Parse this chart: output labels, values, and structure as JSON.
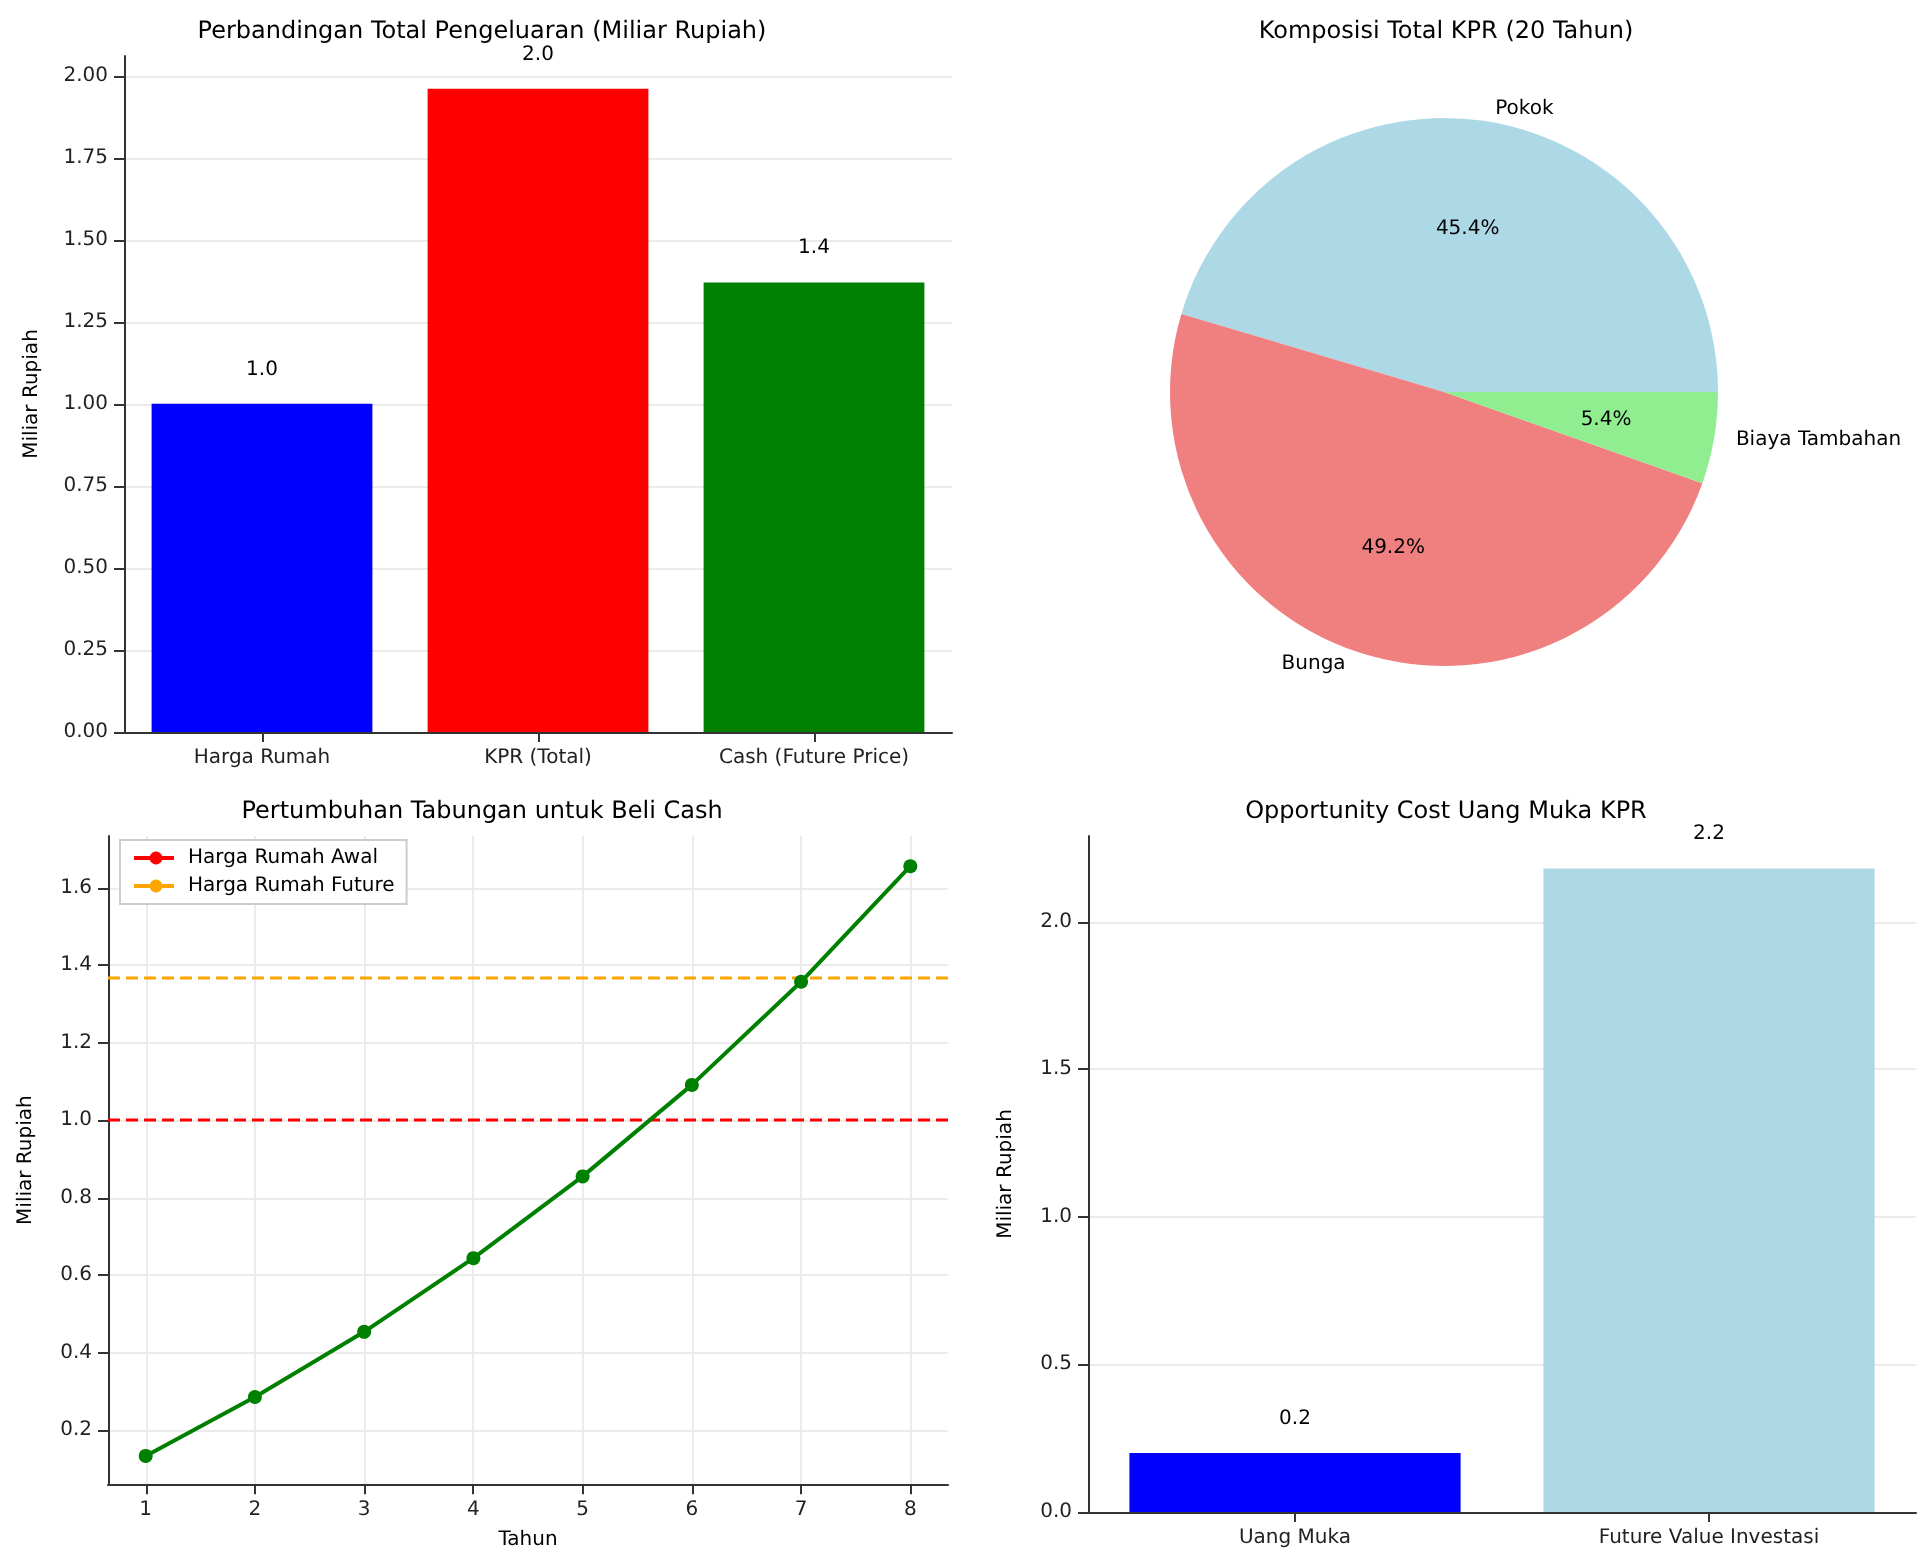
{
  "chart_data": [
    {
      "type": "bar",
      "title": "Perbandingan Total Pengeluaran (Miliar Rupiah)",
      "ylabel": "Miliar Rupiah",
      "categories": [
        "Harga Rumah",
        "KPR (Total)",
        "Cash (Future Price)"
      ],
      "values": [
        1.0,
        1.96,
        1.37
      ],
      "colors": [
        "#0000ff",
        "#ff0000",
        "#008000"
      ],
      "value_labels": [
        "1.0",
        "2.0",
        "1.4"
      ],
      "ylim": [
        0,
        2.06
      ],
      "yticks": [
        {
          "value": 0,
          "label": "0.00"
        },
        {
          "value": 0.25,
          "label": "0.25"
        },
        {
          "value": 0.5,
          "label": "0.50"
        },
        {
          "value": 0.75,
          "label": "0.75"
        },
        {
          "value": 1,
          "label": "1.00"
        },
        {
          "value": 1.25,
          "label": "1.25"
        },
        {
          "value": 1.5,
          "label": "1.50"
        },
        {
          "value": 1.75,
          "label": "1.75"
        },
        {
          "value": 2,
          "label": "2.00"
        }
      ],
      "grid": "y"
    },
    {
      "type": "pie",
      "title": "Komposisi Total KPR (20 Tahun)",
      "categories": [
        "Pokok",
        "Bunga",
        "Biaya Tambahan"
      ],
      "values": [
        45.4,
        49.2,
        5.4
      ],
      "colors": [
        "#add8e6",
        "#f08080",
        "#90ee90"
      ],
      "value_labels": [
        "45.4%",
        "49.2%",
        "5.4%"
      ]
    },
    {
      "type": "line",
      "title": "Pertumbuhan Tabungan untuk Beli Cash",
      "xlabel": "Tahun",
      "ylabel": "Miliar Rupiah",
      "x": [
        1,
        2,
        3,
        4,
        5,
        6,
        7,
        8
      ],
      "series": [
        {
          "color": "#008000",
          "values": [
            0.134,
            0.286,
            0.454,
            0.644,
            0.855,
            1.091,
            1.357,
            1.655
          ]
        }
      ],
      "xlim": [
        0.655,
        8.345
      ],
      "xticks": [
        1,
        2,
        3,
        4,
        5,
        6,
        7,
        8
      ],
      "ylim": [
        0.061,
        1.733
      ],
      "yticks": [
        0.2,
        0.4,
        0.6,
        0.8,
        {
          "value": 1,
          "label": "1.0"
        },
        1.2,
        1.4,
        1.6
      ],
      "ref_lines": [
        {
          "axis": "y",
          "value": 1.0,
          "label": "Harga Rumah Awal",
          "color": "#ff0000",
          "line_style": "dashed"
        },
        {
          "axis": "y",
          "value": 1.37,
          "label": "Harga Rumah Future",
          "color": "#ffa500",
          "line_style": "dashed"
        }
      ],
      "grid": true,
      "legend": "top left",
      "marker": "circle",
      "line_style": "solid"
    },
    {
      "type": "bar",
      "title": "Opportunity Cost Uang Muka KPR",
      "ylabel": "Miliar Rupiah",
      "categories": [
        "Uang Muka",
        "Future Value Investasi"
      ],
      "values": [
        0.2,
        2.18
      ],
      "colors": [
        "#0000ff",
        "#add8e6"
      ],
      "value_labels": [
        "0.2",
        "2.2"
      ],
      "ylim": [
        0,
        2.29
      ],
      "yticks": [
        {
          "value": 0,
          "label": "0.0"
        },
        {
          "value": 0.5,
          "label": "0.5"
        },
        {
          "value": 1,
          "label": "1.0"
        },
        {
          "value": 1.5,
          "label": "1.5"
        },
        {
          "value": 2,
          "label": "2.0"
        }
      ],
      "grid": "y"
    }
  ]
}
